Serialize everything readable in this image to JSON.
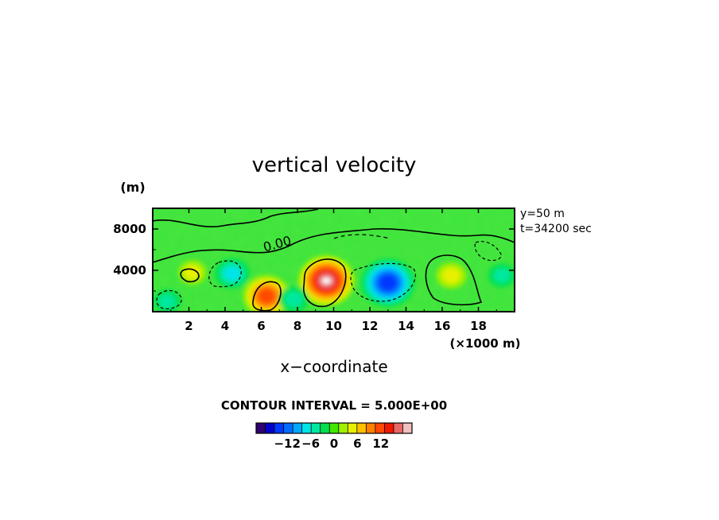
{
  "chart_data": {
    "type": "heatmap",
    "title": "vertical velocity",
    "xlabel": "x−coordinate",
    "x_unit": "(×1000 m)",
    "y_unit": "(m)",
    "xlim": [
      0,
      20
    ],
    "ylim": [
      0,
      10000
    ],
    "x_ticks": [
      "2",
      "4",
      "6",
      "8",
      "10",
      "12",
      "14",
      "16",
      "18"
    ],
    "y_ticks": [
      "4000",
      "8000"
    ],
    "annotations": [
      "y=50 m",
      "t=34200 sec"
    ],
    "contour_label": "0.00",
    "contour_interval_text": "CONTOUR INTERVAL = 5.000E+00",
    "colorbar": {
      "tick_labels": [
        "−12",
        "−6",
        "0",
        "6",
        "12"
      ],
      "colors": [
        "#2e0070",
        "#0000c8",
        "#0038ff",
        "#006cff",
        "#00a8ff",
        "#00e4e8",
        "#00e8a0",
        "#00e050",
        "#40e800",
        "#a0f000",
        "#e8f000",
        "#ffc000",
        "#ff8000",
        "#ff4800",
        "#f01800",
        "#e86868",
        "#f0c0c0"
      ]
    },
    "features": [
      {
        "x": 9.6,
        "y": 3000,
        "value": 17,
        "kind": "updraft"
      },
      {
        "x": 6.3,
        "y": 1500,
        "value": 13,
        "kind": "updraft"
      },
      {
        "x": 16.5,
        "y": 3500,
        "value": 6,
        "kind": "updraft"
      },
      {
        "x": 2.2,
        "y": 3800,
        "value": 5,
        "kind": "updraft"
      },
      {
        "x": 13.0,
        "y": 2800,
        "value": -16,
        "kind": "downdraft"
      },
      {
        "x": 4.4,
        "y": 3700,
        "value": -8,
        "kind": "downdraft"
      },
      {
        "x": 7.8,
        "y": 1200,
        "value": -6,
        "kind": "downdraft"
      },
      {
        "x": 0.8,
        "y": 1000,
        "value": -5,
        "kind": "downdraft"
      },
      {
        "x": 19.3,
        "y": 3500,
        "value": -5,
        "kind": "downdraft"
      }
    ]
  }
}
